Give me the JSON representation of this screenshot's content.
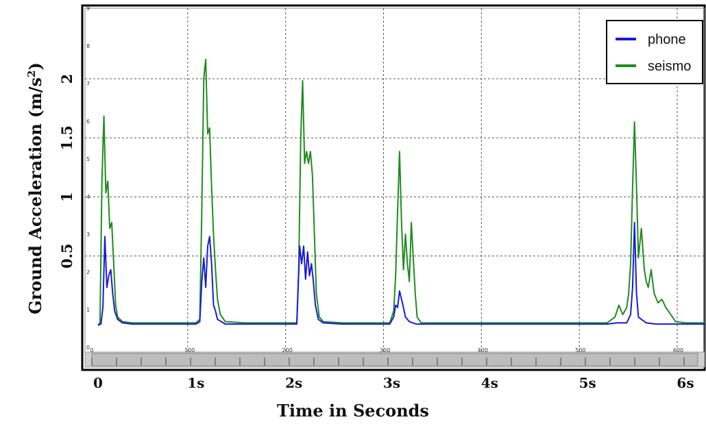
{
  "chart_data": {
    "type": "line",
    "title": "",
    "xlabel": "Time in Seconds",
    "ylabel": "Ground Acceleration (m/s²)",
    "ylabel_base": "Ground Acceleration (m/s",
    "ylabel_sup": "2",
    "ylabel_close": ")",
    "xlim": [
      0,
      6.2
    ],
    "ylim": [
      0,
      2.5
    ],
    "x_ticks": [
      {
        "value": 0,
        "label": "0"
      },
      {
        "value": 1,
        "label": "1s"
      },
      {
        "value": 2,
        "label": "2s"
      },
      {
        "value": 3,
        "label": "3s"
      },
      {
        "value": 4,
        "label": "4s"
      },
      {
        "value": 5,
        "label": "5s"
      },
      {
        "value": 6,
        "label": "6s"
      }
    ],
    "y_ticks": [
      {
        "value": 0.5,
        "label": "0.5"
      },
      {
        "value": 1,
        "label": "1"
      },
      {
        "value": 1.5,
        "label": "1.5"
      },
      {
        "value": 2,
        "label": "2"
      }
    ],
    "inner_x_ticks": [
      "0",
      "100",
      "200",
      "300",
      "400",
      "500",
      "600"
    ],
    "inner_y_ticks": [
      "0",
      "1",
      "2",
      "3",
      "4",
      "5",
      "6",
      "7",
      "8",
      "9"
    ],
    "grid": true,
    "legend_position": "top-right",
    "series": [
      {
        "name": "phone",
        "color": "#1a1ad6",
        "points": [
          [
            0,
            0.03
          ],
          [
            0.03,
            0.04
          ],
          [
            0.05,
            0.18
          ],
          [
            0.07,
            0.78
          ],
          [
            0.09,
            0.35
          ],
          [
            0.11,
            0.45
          ],
          [
            0.13,
            0.5
          ],
          [
            0.15,
            0.3
          ],
          [
            0.17,
            0.15
          ],
          [
            0.2,
            0.08
          ],
          [
            0.25,
            0.05
          ],
          [
            0.35,
            0.04
          ],
          [
            0.5,
            0.04
          ],
          [
            0.7,
            0.04
          ],
          [
            0.9,
            0.04
          ],
          [
            1.0,
            0.04
          ],
          [
            1.04,
            0.06
          ],
          [
            1.06,
            0.4
          ],
          [
            1.08,
            0.6
          ],
          [
            1.1,
            0.35
          ],
          [
            1.12,
            0.7
          ],
          [
            1.14,
            0.78
          ],
          [
            1.16,
            0.55
          ],
          [
            1.18,
            0.2
          ],
          [
            1.2,
            0.15
          ],
          [
            1.22,
            0.08
          ],
          [
            1.3,
            0.04
          ],
          [
            1.5,
            0.04
          ],
          [
            1.7,
            0.04
          ],
          [
            1.95,
            0.04
          ],
          [
            2.03,
            0.04
          ],
          [
            2.06,
            0.7
          ],
          [
            2.08,
            0.55
          ],
          [
            2.1,
            0.7
          ],
          [
            2.12,
            0.42
          ],
          [
            2.14,
            0.65
          ],
          [
            2.16,
            0.45
          ],
          [
            2.18,
            0.55
          ],
          [
            2.2,
            0.4
          ],
          [
            2.22,
            0.2
          ],
          [
            2.25,
            0.08
          ],
          [
            2.3,
            0.05
          ],
          [
            2.5,
            0.04
          ],
          [
            2.8,
            0.04
          ],
          [
            2.98,
            0.04
          ],
          [
            3.02,
            0.1
          ],
          [
            3.04,
            0.2
          ],
          [
            3.06,
            0.18
          ],
          [
            3.08,
            0.32
          ],
          [
            3.1,
            0.25
          ],
          [
            3.12,
            0.18
          ],
          [
            3.14,
            0.1
          ],
          [
            3.18,
            0.06
          ],
          [
            3.25,
            0.04
          ],
          [
            3.5,
            0.04
          ],
          [
            3.8,
            0.04
          ],
          [
            4.2,
            0.04
          ],
          [
            4.6,
            0.04
          ],
          [
            5.0,
            0.04
          ],
          [
            5.2,
            0.04
          ],
          [
            5.3,
            0.05
          ],
          [
            5.4,
            0.05
          ],
          [
            5.44,
            0.12
          ],
          [
            5.46,
            0.35
          ],
          [
            5.48,
            0.9
          ],
          [
            5.5,
            0.3
          ],
          [
            5.52,
            0.1
          ],
          [
            5.55,
            0.08
          ],
          [
            5.6,
            0.05
          ],
          [
            5.7,
            0.04
          ],
          [
            5.9,
            0.04
          ],
          [
            6.2,
            0.04
          ]
        ]
      },
      {
        "name": "seismo",
        "color": "#1e8c1e",
        "points": [
          [
            0,
            0.03
          ],
          [
            0.02,
            0.05
          ],
          [
            0.04,
            1.25
          ],
          [
            0.06,
            1.8
          ],
          [
            0.08,
            1.15
          ],
          [
            0.1,
            1.25
          ],
          [
            0.12,
            0.85
          ],
          [
            0.14,
            0.9
          ],
          [
            0.16,
            0.55
          ],
          [
            0.18,
            0.2
          ],
          [
            0.2,
            0.1
          ],
          [
            0.25,
            0.06
          ],
          [
            0.35,
            0.05
          ],
          [
            0.5,
            0.05
          ],
          [
            0.7,
            0.05
          ],
          [
            0.9,
            0.05
          ],
          [
            1.0,
            0.05
          ],
          [
            1.04,
            0.08
          ],
          [
            1.06,
            1.0
          ],
          [
            1.08,
            2.12
          ],
          [
            1.1,
            2.28
          ],
          [
            1.12,
            1.65
          ],
          [
            1.14,
            1.7
          ],
          [
            1.16,
            1.2
          ],
          [
            1.18,
            0.8
          ],
          [
            1.2,
            0.5
          ],
          [
            1.22,
            0.25
          ],
          [
            1.25,
            0.12
          ],
          [
            1.3,
            0.06
          ],
          [
            1.5,
            0.05
          ],
          [
            1.7,
            0.05
          ],
          [
            1.95,
            0.05
          ],
          [
            2.03,
            0.05
          ],
          [
            2.05,
            0.5
          ],
          [
            2.07,
            1.6
          ],
          [
            2.09,
            2.1
          ],
          [
            2.11,
            1.4
          ],
          [
            2.13,
            1.5
          ],
          [
            2.15,
            1.4
          ],
          [
            2.17,
            1.5
          ],
          [
            2.19,
            1.3
          ],
          [
            2.21,
            0.8
          ],
          [
            2.23,
            0.3
          ],
          [
            2.26,
            0.1
          ],
          [
            2.3,
            0.06
          ],
          [
            2.5,
            0.05
          ],
          [
            2.8,
            0.05
          ],
          [
            2.98,
            0.05
          ],
          [
            3.02,
            0.15
          ],
          [
            3.04,
            0.45
          ],
          [
            3.06,
            1.0
          ],
          [
            3.08,
            1.5
          ],
          [
            3.1,
            0.9
          ],
          [
            3.12,
            0.5
          ],
          [
            3.14,
            0.8
          ],
          [
            3.16,
            0.55
          ],
          [
            3.18,
            0.4
          ],
          [
            3.2,
            0.9
          ],
          [
            3.22,
            0.6
          ],
          [
            3.24,
            0.3
          ],
          [
            3.26,
            0.1
          ],
          [
            3.3,
            0.05
          ],
          [
            3.5,
            0.05
          ],
          [
            3.8,
            0.05
          ],
          [
            4.2,
            0.05
          ],
          [
            4.6,
            0.05
          ],
          [
            5.0,
            0.05
          ],
          [
            5.2,
            0.05
          ],
          [
            5.28,
            0.1
          ],
          [
            5.32,
            0.2
          ],
          [
            5.36,
            0.12
          ],
          [
            5.4,
            0.18
          ],
          [
            5.42,
            0.3
          ],
          [
            5.44,
            0.55
          ],
          [
            5.46,
            1.2
          ],
          [
            5.48,
            1.75
          ],
          [
            5.5,
            1.2
          ],
          [
            5.52,
            0.6
          ],
          [
            5.55,
            0.85
          ],
          [
            5.58,
            0.5
          ],
          [
            5.6,
            0.4
          ],
          [
            5.62,
            0.35
          ],
          [
            5.65,
            0.5
          ],
          [
            5.68,
            0.3
          ],
          [
            5.72,
            0.22
          ],
          [
            5.76,
            0.25
          ],
          [
            5.8,
            0.18
          ],
          [
            5.85,
            0.12
          ],
          [
            5.9,
            0.06
          ],
          [
            6.0,
            0.05
          ],
          [
            6.2,
            0.05
          ]
        ]
      }
    ]
  }
}
